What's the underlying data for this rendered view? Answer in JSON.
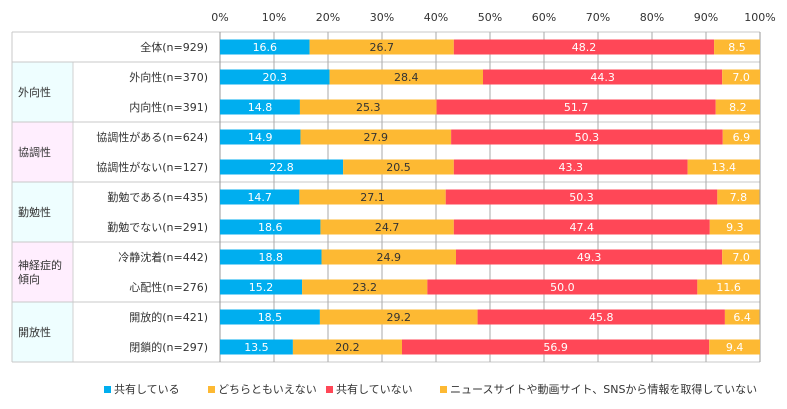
{
  "chart_data": {
    "type": "bar",
    "orientation": "horizontal-stacked-100",
    "xlim": [
      0,
      100
    ],
    "x_ticks": [
      "0%",
      "10%",
      "20%",
      "30%",
      "40%",
      "50%",
      "60%",
      "70%",
      "80%",
      "90%",
      "100%"
    ],
    "grid": true,
    "legend_position": "bottom",
    "series": [
      {
        "name": "共有している",
        "color": "#00AEEF",
        "text_color": "#ffffff"
      },
      {
        "name": "どちらともいえない",
        "color": "#FDB933",
        "text_color": "#333333"
      },
      {
        "name": "共有していない",
        "color": "#FF4757",
        "text_color": "#ffffff"
      },
      {
        "name": "ニュースサイトや動画サイト、SNSから情報を取得していない",
        "color": "#FDB933",
        "text_color": "#ffffff"
      }
    ],
    "groups": [
      {
        "name": "",
        "bg": "#ffffff",
        "rows": [
          {
            "label": "全体(n=929)",
            "values": [
              16.6,
              26.7,
              48.2,
              8.5
            ]
          }
        ]
      },
      {
        "name": "外向性",
        "bg": "#EEFEFF",
        "rows": [
          {
            "label": "外向性(n=370)",
            "values": [
              20.3,
              28.4,
              44.3,
              7.0
            ]
          },
          {
            "label": "内向性(n=391)",
            "values": [
              14.8,
              25.3,
              51.7,
              8.2
            ]
          }
        ]
      },
      {
        "name": "協調性",
        "bg": "#FFEEFE",
        "rows": [
          {
            "label": "協調性がある(n=624)",
            "values": [
              14.9,
              27.9,
              50.3,
              6.9
            ]
          },
          {
            "label": "協調性がない(n=127)",
            "values": [
              22.8,
              20.5,
              43.3,
              13.4
            ]
          }
        ]
      },
      {
        "name": "勤勉性",
        "bg": "#EEFEFF",
        "rows": [
          {
            "label": "勤勉である(n=435)",
            "values": [
              14.7,
              27.1,
              50.3,
              7.8
            ]
          },
          {
            "label": "勤勉でない(n=291)",
            "values": [
              18.6,
              24.7,
              47.4,
              9.3
            ]
          }
        ]
      },
      {
        "name": "神経症的\n傾向",
        "bg": "#FFEEFE",
        "rows": [
          {
            "label": "冷静沈着(n=442)",
            "values": [
              18.8,
              24.9,
              49.3,
              7.0
            ]
          },
          {
            "label": "心配性(n=276)",
            "values": [
              15.2,
              23.2,
              50.0,
              11.6
            ]
          }
        ]
      },
      {
        "name": "開放性",
        "bg": "#EEFEFF",
        "rows": [
          {
            "label": "開放的(n=421)",
            "values": [
              18.5,
              29.2,
              45.8,
              6.4
            ]
          },
          {
            "label": "閉鎖的(n=297)",
            "values": [
              13.5,
              20.2,
              56.9,
              9.4
            ]
          }
        ]
      }
    ]
  }
}
